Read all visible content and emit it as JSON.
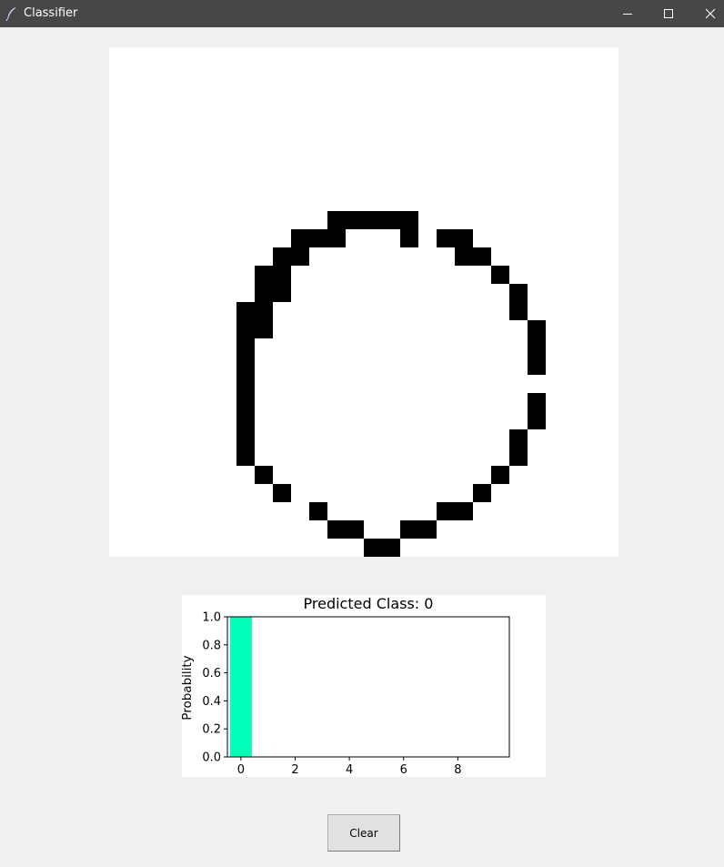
{
  "window": {
    "title": "Classifier",
    "icons": [
      "feather-icon",
      "minimize-icon",
      "maximize-icon",
      "close-icon"
    ]
  },
  "drawing_canvas": {
    "grid_size": 28,
    "background_color": "#ffffff",
    "ink_color": "#000000",
    "filled_cells": [
      [
        9,
        12
      ],
      [
        9,
        13
      ],
      [
        9,
        14
      ],
      [
        9,
        15
      ],
      [
        9,
        16
      ],
      [
        10,
        10
      ],
      [
        10,
        11
      ],
      [
        10,
        12
      ],
      [
        10,
        16
      ],
      [
        10,
        18
      ],
      [
        10,
        19
      ],
      [
        11,
        9
      ],
      [
        11,
        10
      ],
      [
        11,
        19
      ],
      [
        11,
        20
      ],
      [
        12,
        8
      ],
      [
        12,
        9
      ],
      [
        12,
        21
      ],
      [
        13,
        8
      ],
      [
        13,
        9
      ],
      [
        13,
        22
      ],
      [
        14,
        7
      ],
      [
        14,
        8
      ],
      [
        14,
        22
      ],
      [
        15,
        7
      ],
      [
        15,
        8
      ],
      [
        15,
        23
      ],
      [
        16,
        7
      ],
      [
        16,
        23
      ],
      [
        17,
        7
      ],
      [
        17,
        23
      ],
      [
        18,
        7
      ],
      [
        19,
        7
      ],
      [
        19,
        23
      ],
      [
        20,
        7
      ],
      [
        20,
        23
      ],
      [
        21,
        7
      ],
      [
        21,
        22
      ],
      [
        22,
        7
      ],
      [
        22,
        22
      ],
      [
        23,
        8
      ],
      [
        23,
        21
      ],
      [
        24,
        9
      ],
      [
        24,
        20
      ],
      [
        25,
        11
      ],
      [
        25,
        18
      ],
      [
        25,
        19
      ],
      [
        26,
        12
      ],
      [
        26,
        13
      ],
      [
        26,
        16
      ],
      [
        26,
        17
      ],
      [
        27,
        14
      ],
      [
        27,
        15
      ]
    ]
  },
  "prediction": {
    "title": "Predicted Class: 0",
    "bar_color": "#00ffb9"
  },
  "chart_data": {
    "type": "bar",
    "title": "Predicted Class: 0",
    "xlabel": "",
    "ylabel": "Probability",
    "categories": [
      0,
      1,
      2,
      3,
      4,
      5,
      6,
      7,
      8,
      9
    ],
    "values": [
      1.0,
      0,
      0,
      0,
      0,
      0,
      0,
      0,
      0,
      0
    ],
    "xlim": [
      -0.5,
      9.9
    ],
    "ylim": [
      0.0,
      1.0
    ],
    "xticks": [
      "0",
      "2",
      "4",
      "6",
      "8"
    ],
    "yticks": [
      "0.0",
      "0.2",
      "0.4",
      "0.6",
      "0.8",
      "1.0"
    ],
    "grid": false,
    "bar_color": "#00ffb9"
  },
  "controls": {
    "clear_label": "Clear"
  }
}
